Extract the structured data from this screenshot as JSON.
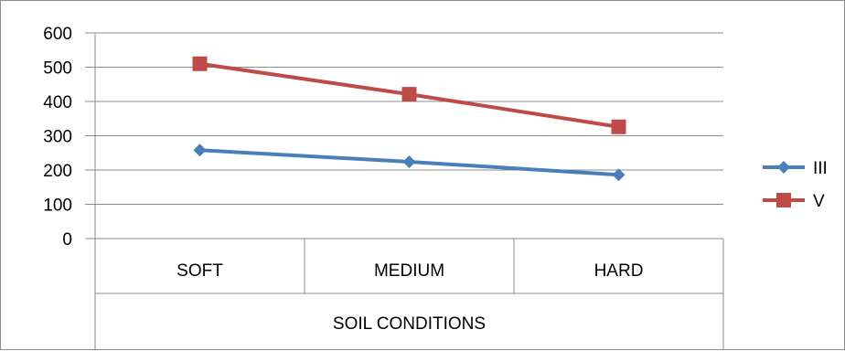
{
  "chart_data": {
    "type": "line",
    "title": "",
    "xlabel": "SOIL CONDITIONS",
    "ylabel": "",
    "categories": [
      "SOFT",
      "MEDIUM",
      "HARD"
    ],
    "ylim": [
      0,
      600
    ],
    "yticks": [
      0,
      100,
      200,
      300,
      400,
      500,
      600
    ],
    "grid": "horizontal",
    "legend_position": "right",
    "series": [
      {
        "name": "III",
        "values": [
          258,
          224,
          186
        ],
        "color": "#4a7ebb",
        "marker": "diamond"
      },
      {
        "name": "V",
        "values": [
          510,
          421,
          326
        ],
        "color": "#be4b48",
        "marker": "square"
      }
    ]
  }
}
